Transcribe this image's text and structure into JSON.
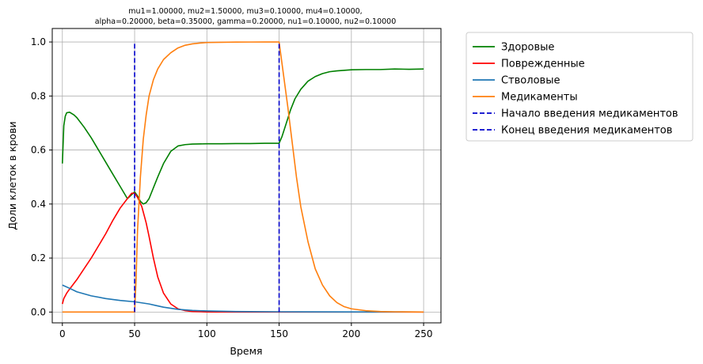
{
  "chart_data": {
    "type": "line",
    "title_lines": [
      "mu1=1.00000, mu2=1.50000, mu3=0.10000, mu4=0.10000,",
      "alpha=0.20000, beta=0.35000, gamma=0.20000, nu1=0.10000, nu2=0.10000"
    ],
    "xlabel": "Время",
    "ylabel": "Доли клеток в крови",
    "xlim": [
      -7,
      262
    ],
    "ylim": [
      -0.04,
      1.05
    ],
    "xticks": [
      0,
      50,
      100,
      150,
      200,
      250
    ],
    "yticks": [
      0.0,
      0.2,
      0.4,
      0.6,
      0.8,
      1.0
    ],
    "grid": true,
    "legend_position": "outside-right",
    "series": [
      {
        "name": "Здоровые",
        "color": "#008000",
        "style": "solid",
        "x": [
          0,
          1,
          2,
          3,
          5,
          8,
          10,
          15,
          20,
          25,
          30,
          35,
          40,
          45,
          50,
          52,
          54,
          56,
          58,
          60,
          63,
          66,
          70,
          75,
          80,
          85,
          90,
          100,
          110,
          120,
          130,
          140,
          150,
          152,
          155,
          158,
          161,
          165,
          170,
          175,
          180,
          185,
          190,
          200,
          210,
          220,
          230,
          240,
          250
        ],
        "y": [
          0.55,
          0.69,
          0.725,
          0.738,
          0.74,
          0.73,
          0.72,
          0.685,
          0.645,
          0.6,
          0.555,
          0.51,
          0.465,
          0.42,
          0.445,
          0.43,
          0.41,
          0.4,
          0.405,
          0.42,
          0.46,
          0.5,
          0.55,
          0.595,
          0.615,
          0.62,
          0.622,
          0.623,
          0.623,
          0.624,
          0.624,
          0.625,
          0.625,
          0.65,
          0.7,
          0.75,
          0.79,
          0.825,
          0.855,
          0.872,
          0.883,
          0.89,
          0.893,
          0.897,
          0.898,
          0.898,
          0.9,
          0.899,
          0.9
        ]
      },
      {
        "name": "Поврежденные",
        "color": "#ff0000",
        "style": "solid",
        "x": [
          0,
          1,
          2,
          3,
          5,
          10,
          15,
          20,
          25,
          30,
          35,
          40,
          45,
          48,
          50,
          52,
          55,
          58,
          60,
          63,
          66,
          70,
          75,
          80,
          85,
          90,
          100,
          120,
          150,
          200,
          250
        ],
        "y": [
          0.03,
          0.05,
          0.06,
          0.07,
          0.085,
          0.12,
          0.16,
          0.2,
          0.245,
          0.29,
          0.34,
          0.385,
          0.42,
          0.44,
          0.44,
          0.425,
          0.39,
          0.33,
          0.28,
          0.2,
          0.13,
          0.07,
          0.03,
          0.012,
          0.005,
          0.002,
          0.0005,
          0.0,
          0.0,
          0.0,
          0.0
        ]
      },
      {
        "name": "Стволовые",
        "color": "#1f77b4",
        "style": "solid",
        "x": [
          0,
          5,
          10,
          20,
          30,
          40,
          50,
          55,
          60,
          65,
          70,
          80,
          90,
          100,
          120,
          150,
          200,
          250
        ],
        "y": [
          0.1,
          0.088,
          0.075,
          0.06,
          0.05,
          0.043,
          0.038,
          0.034,
          0.03,
          0.024,
          0.018,
          0.01,
          0.006,
          0.004,
          0.002,
          0.001,
          0.0005,
          0.0003
        ]
      },
      {
        "name": "Медикаменты",
        "color": "#ff7f0e",
        "style": "solid",
        "x": [
          0,
          50,
          51,
          52,
          54,
          56,
          58,
          60,
          63,
          66,
          70,
          75,
          80,
          85,
          90,
          95,
          100,
          110,
          120,
          130,
          140,
          150,
          151,
          153,
          156,
          159,
          162,
          165,
          170,
          175,
          180,
          185,
          190,
          195,
          200,
          210,
          220,
          230,
          250
        ],
        "y": [
          0.0,
          0.0,
          0.12,
          0.3,
          0.5,
          0.64,
          0.73,
          0.8,
          0.86,
          0.9,
          0.935,
          0.96,
          0.978,
          0.988,
          0.993,
          0.996,
          0.998,
          0.999,
          0.9995,
          0.9998,
          1.0,
          1.0,
          0.96,
          0.88,
          0.76,
          0.63,
          0.5,
          0.39,
          0.26,
          0.16,
          0.1,
          0.06,
          0.035,
          0.02,
          0.012,
          0.005,
          0.002,
          0.001,
          0.0
        ]
      },
      {
        "name": "Начало введения медикаментов",
        "color": "#0000cc",
        "style": "dashed",
        "x": [
          50,
          50
        ],
        "y": [
          0.0,
          1.0
        ]
      },
      {
        "name": "Конец введения медикаментов",
        "color": "#0000cc",
        "style": "dashed",
        "x": [
          150,
          150
        ],
        "y": [
          0.0,
          1.0
        ]
      }
    ]
  }
}
